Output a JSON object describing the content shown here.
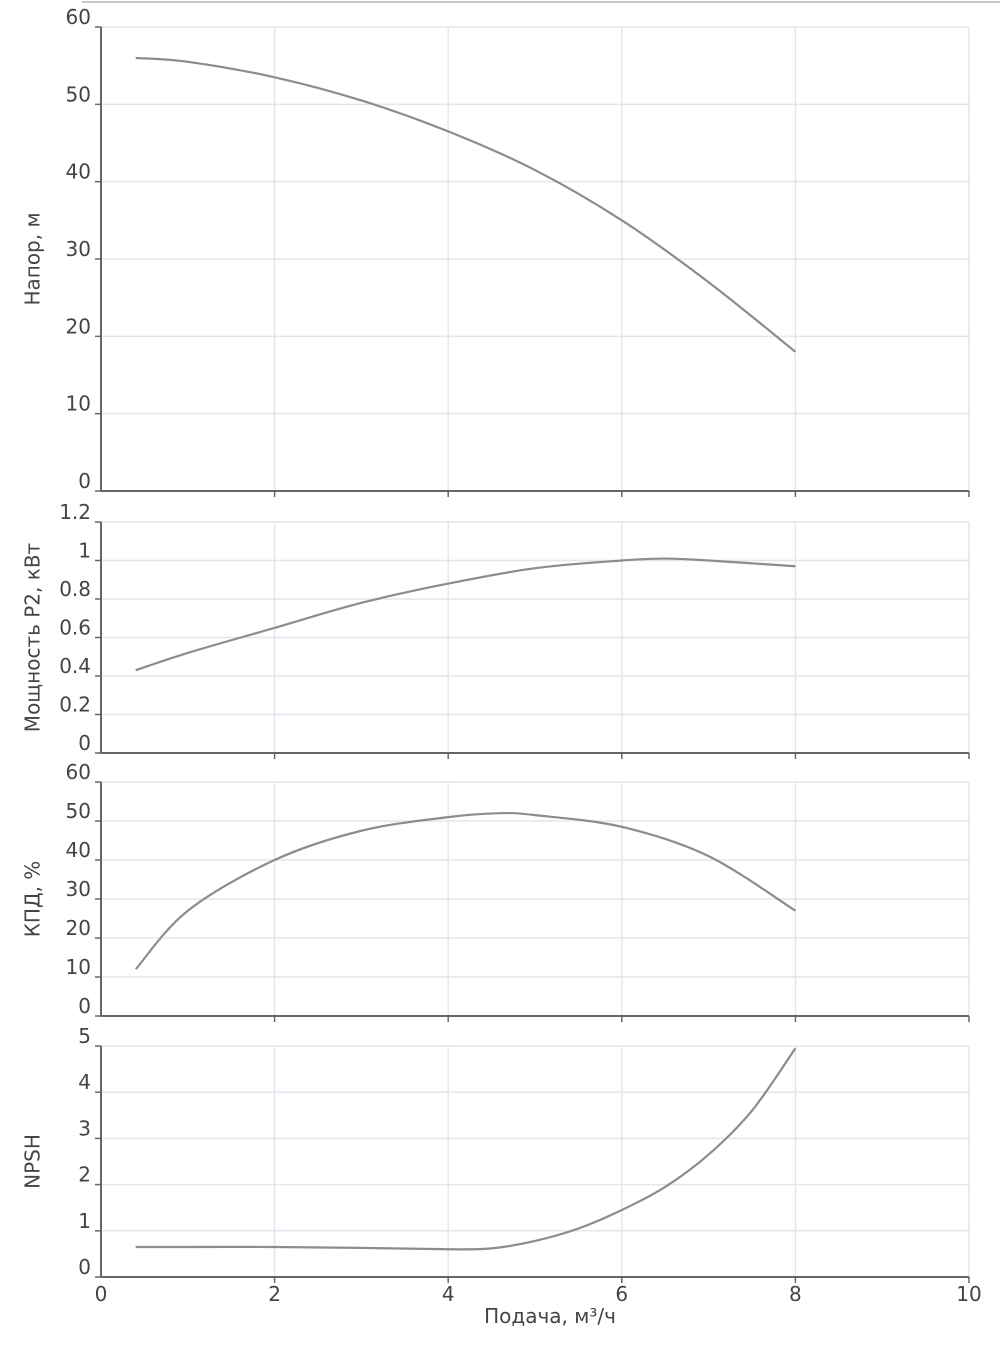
{
  "chart_data": [
    {
      "type": "line",
      "ylabel": "Напор, м",
      "xlabel": "",
      "xlim": [
        0,
        10
      ],
      "ylim": [
        0,
        60
      ],
      "yticks": [
        "0",
        "10",
        "20",
        "30",
        "40",
        "50",
        "60"
      ],
      "grid": true,
      "series": [
        {
          "x": [
            0.4,
            1,
            2,
            3,
            4,
            5,
            6,
            7,
            8
          ],
          "y": [
            56,
            55.5,
            53.5,
            50.5,
            46.5,
            41.5,
            35,
            27,
            18
          ]
        }
      ]
    },
    {
      "type": "line",
      "ylabel": "Мощность Р2, кВт",
      "xlabel": "",
      "xlim": [
        0,
        10
      ],
      "ylim": [
        0,
        1.2
      ],
      "yticks": [
        "0",
        "0.2",
        "0.4",
        "0.6",
        "0.8",
        "1",
        "1.2"
      ],
      "grid": true,
      "series": [
        {
          "x": [
            0.4,
            1,
            2,
            3,
            4,
            5,
            6,
            6.5,
            7,
            8
          ],
          "y": [
            0.43,
            0.52,
            0.65,
            0.78,
            0.88,
            0.96,
            1.0,
            1.01,
            1.0,
            0.97
          ]
        }
      ]
    },
    {
      "type": "line",
      "ylabel": "КПД, %",
      "xlabel": "",
      "xlim": [
        0,
        10
      ],
      "ylim": [
        0,
        60
      ],
      "yticks": [
        "0",
        "10",
        "20",
        "30",
        "40",
        "50",
        "60"
      ],
      "grid": true,
      "series": [
        {
          "x": [
            0.4,
            1,
            2,
            3,
            4,
            4.6,
            5,
            6,
            7,
            8
          ],
          "y": [
            12,
            27,
            40,
            47.5,
            51,
            52,
            51.5,
            48.5,
            41,
            27
          ]
        }
      ]
    },
    {
      "type": "line",
      "ylabel": "NPSH",
      "xlabel": "Подача, м³/ч",
      "xlim": [
        0,
        10
      ],
      "ylim": [
        0,
        5
      ],
      "yticks": [
        "0",
        "1",
        "2",
        "3",
        "4",
        "5"
      ],
      "xticks": [
        "0",
        "2",
        "4",
        "6",
        "8",
        "10"
      ],
      "grid": true,
      "series": [
        {
          "x": [
            0.4,
            1,
            2,
            3,
            4,
            4.5,
            5,
            5.5,
            6,
            6.5,
            7,
            7.5,
            8
          ],
          "y": [
            0.65,
            0.65,
            0.65,
            0.63,
            0.6,
            0.62,
            0.78,
            1.05,
            1.45,
            1.95,
            2.65,
            3.6,
            4.95
          ]
        }
      ]
    }
  ]
}
